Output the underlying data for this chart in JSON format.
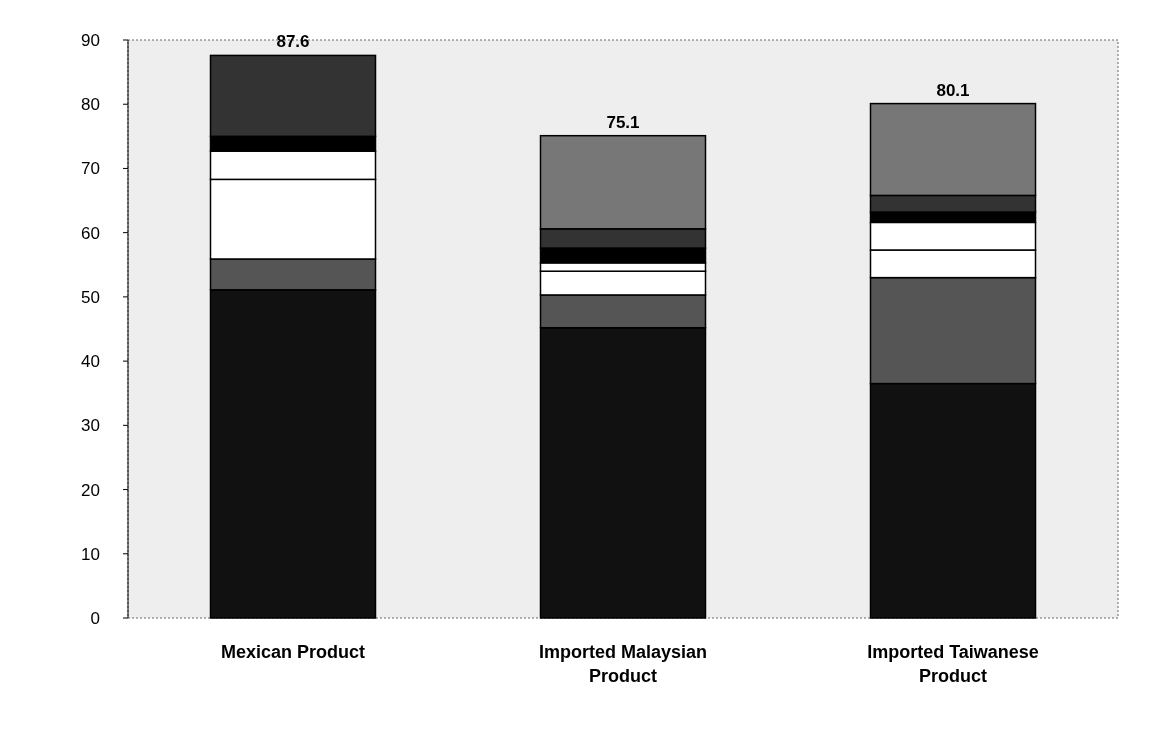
{
  "chart_data": {
    "type": "bar",
    "stacked": true,
    "categories": [
      "Mexican Product",
      "Imported Malaysian Product",
      "Imported Taiwanese Product"
    ],
    "series": [
      {
        "color": "#111111",
        "values": [
          51.1,
          45.2,
          36.5
        ]
      },
      {
        "color": "#555555",
        "values": [
          4.8,
          5.1,
          16.5
        ]
      },
      {
        "color": "#ffffff",
        "values": [
          12.4,
          3.7,
          4.3
        ]
      },
      {
        "color": "#ffffff",
        "values": [
          4.4,
          1.3,
          4.3
        ]
      },
      {
        "color": "#000000",
        "values": [
          2.3,
          2.3,
          1.6
        ]
      },
      {
        "color": "#333333",
        "values": [
          12.6,
          3.0,
          2.6
        ]
      },
      {
        "color": "#777777",
        "values": [
          0,
          14.5,
          14.3
        ]
      }
    ],
    "totals": [
      "87.6",
      "75.1",
      "80.1"
    ],
    "ylim": [
      0,
      90
    ],
    "yticks": [
      0,
      10,
      20,
      30,
      40,
      50,
      60,
      70,
      80,
      90
    ]
  }
}
